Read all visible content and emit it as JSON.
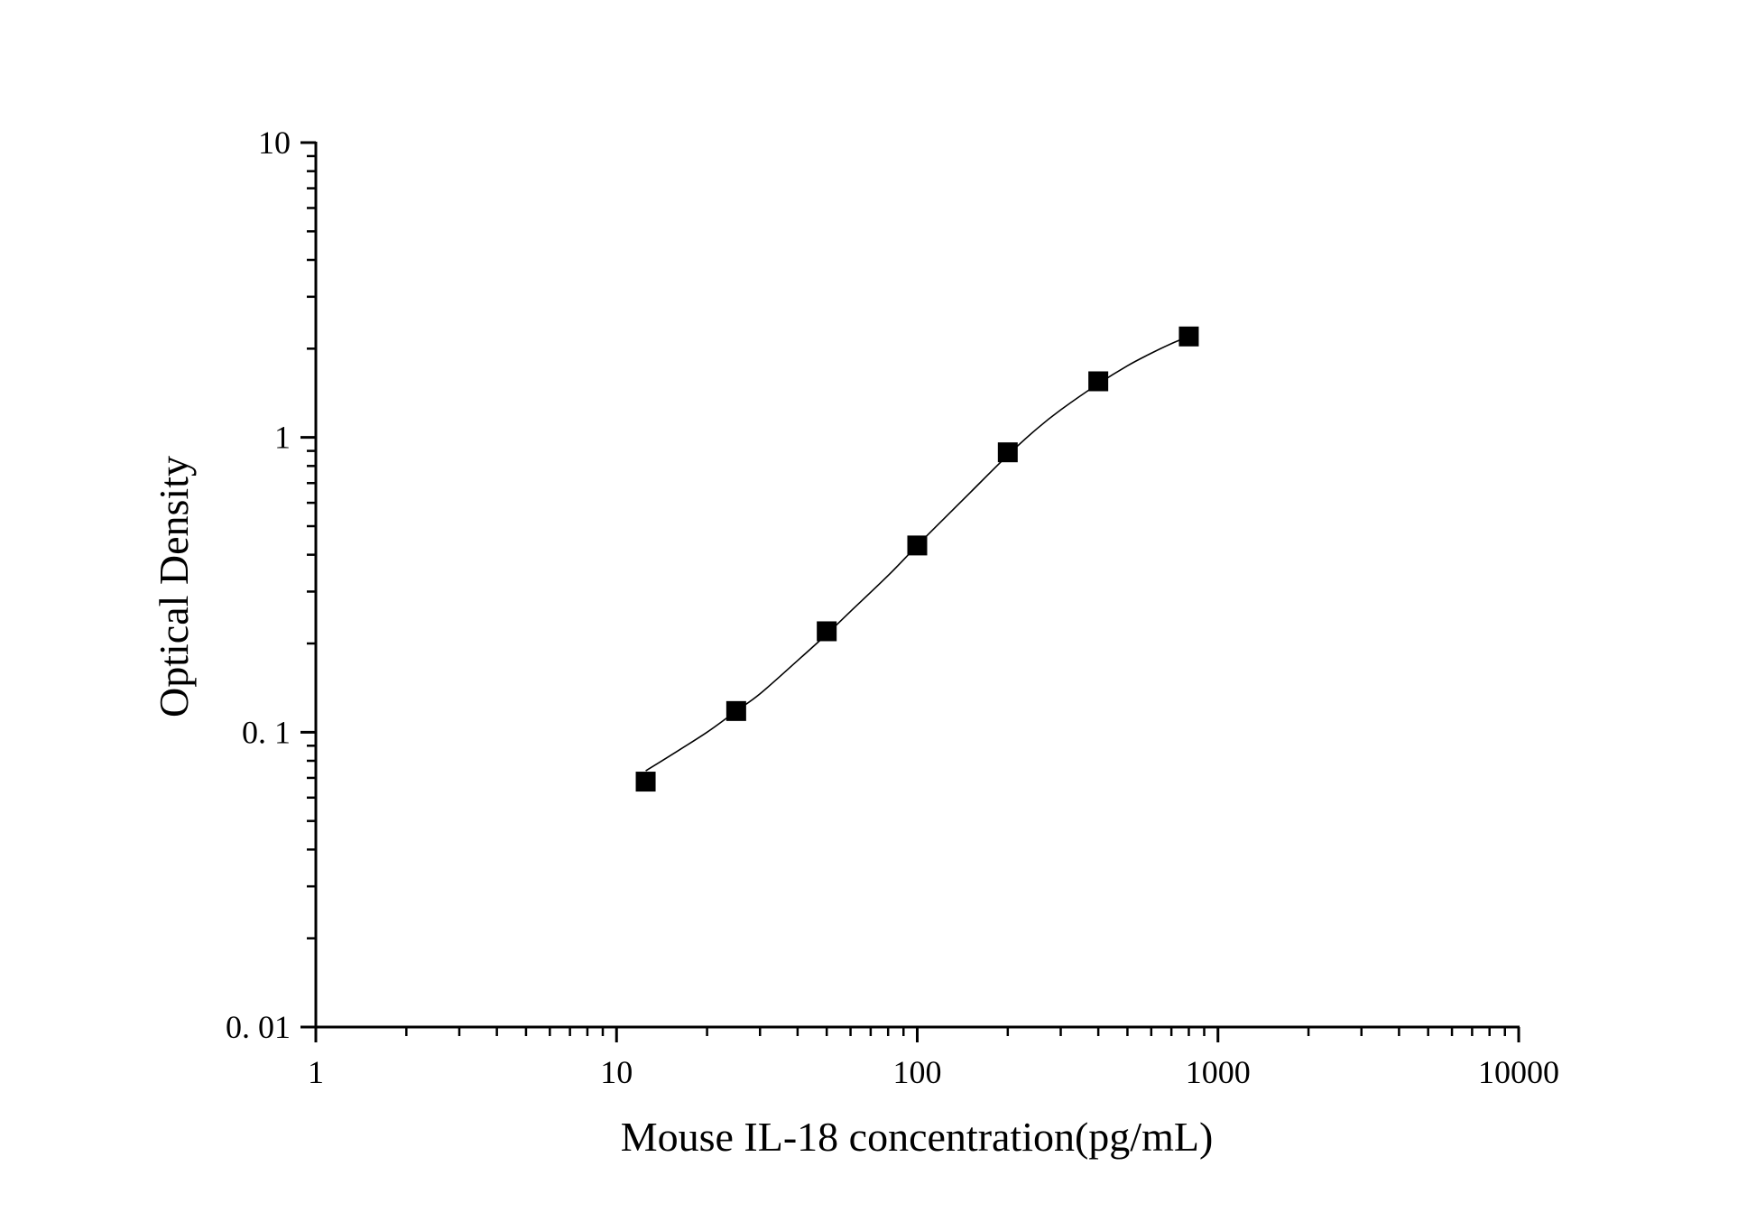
{
  "chart_data": {
    "type": "scatter",
    "title": "",
    "xlabel": "Mouse IL-18 concentration(pg/mL)",
    "ylabel": "Optical Density",
    "x_scale": "log",
    "y_scale": "log",
    "xlim": [
      1,
      10000
    ],
    "ylim": [
      0.01,
      10
    ],
    "x_ticks": [
      1,
      10,
      100,
      1000,
      10000
    ],
    "x_tick_labels": [
      "1",
      "10",
      "100",
      "1000",
      "10000"
    ],
    "y_ticks": [
      0.01,
      0.1,
      1,
      10
    ],
    "y_tick_labels": [
      "0. 01",
      "0. 1",
      "1",
      "10"
    ],
    "grid": false,
    "legend": "none",
    "series": [
      {
        "marker": "square",
        "x": [
          12.5,
          25,
          50,
          100,
          200,
          400,
          800
        ],
        "y": [
          0.068,
          0.118,
          0.22,
          0.43,
          0.89,
          1.55,
          2.2
        ]
      }
    ],
    "fit_curve": {
      "style": "line",
      "x": [
        12.5,
        15,
        20,
        25,
        30,
        40,
        50,
        60,
        80,
        100,
        125,
        150,
        200,
        250,
        300,
        400,
        500,
        600,
        700,
        800
      ],
      "y": [
        0.074,
        0.083,
        0.1,
        0.118,
        0.135,
        0.175,
        0.215,
        0.257,
        0.34,
        0.43,
        0.54,
        0.65,
        0.87,
        1.07,
        1.24,
        1.52,
        1.75,
        1.93,
        2.08,
        2.2
      ]
    },
    "colors": {
      "axis": "#000000",
      "marker": "#000000",
      "curve": "#000000"
    }
  }
}
